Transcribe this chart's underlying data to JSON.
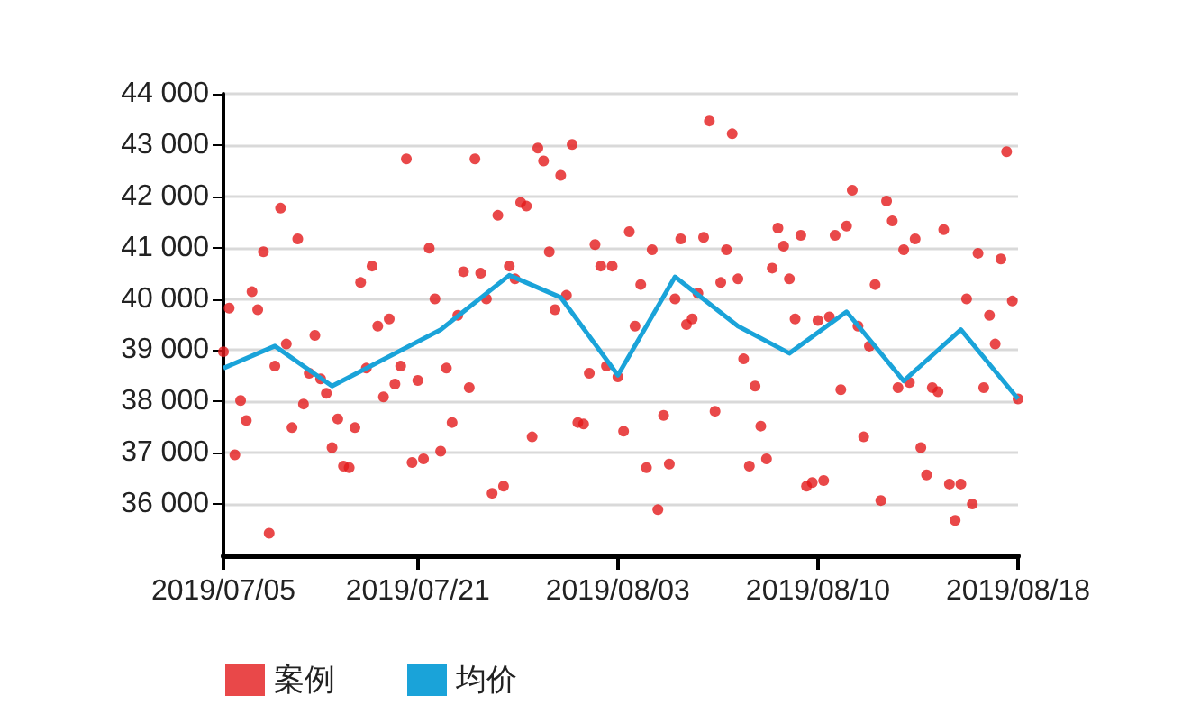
{
  "chart_data": {
    "type": "scatter",
    "categories": [
      "2019/07/05",
      null,
      null,
      null,
      null,
      null,
      null,
      null,
      null,
      null,
      null,
      null,
      null,
      null,
      null,
      null,
      null,
      null,
      null,
      null,
      null,
      null,
      null,
      null,
      null,
      null,
      null,
      null,
      null,
      null,
      null,
      null,
      null,
      null,
      "2019/07/21",
      null,
      null,
      null,
      null,
      null,
      null,
      null,
      null,
      null,
      null,
      null,
      null,
      null,
      null,
      null,
      null,
      null,
      null,
      null,
      null,
      null,
      null,
      null,
      null,
      null,
      null,
      null,
      null,
      null,
      null,
      null,
      null,
      null,
      null,
      "2019/08/03",
      null,
      null,
      null,
      null,
      null,
      null,
      null,
      null,
      null,
      null,
      null,
      null,
      null,
      null,
      null,
      null,
      null,
      null,
      null,
      null,
      null,
      null,
      null,
      null,
      null,
      null,
      null,
      null,
      null,
      null,
      null,
      null,
      null,
      null,
      "2019/08/10",
      null,
      null,
      null,
      null,
      null,
      null,
      null,
      null,
      null,
      null,
      null,
      null,
      null,
      null,
      null,
      null,
      null,
      null,
      null,
      null,
      null,
      null,
      null,
      null,
      null,
      null,
      null,
      null,
      null,
      null,
      null,
      null,
      null,
      null,
      "2019/08/18"
    ],
    "ylim": [
      35000,
      44000
    ],
    "yticks": [
      {
        "value": 36000,
        "label": "36 000"
      },
      {
        "value": 37000,
        "label": "37 000"
      },
      {
        "value": 38000,
        "label": "38 000"
      },
      {
        "value": 39000,
        "label": "39 000"
      },
      {
        "value": 40000,
        "label": "40 000"
      },
      {
        "value": 41000,
        "label": "41 000"
      },
      {
        "value": 42000,
        "label": "42 000"
      },
      {
        "value": 43000,
        "label": "43 000"
      },
      {
        "value": 44000,
        "label": "44 000"
      }
    ],
    "grid": "y",
    "legend": "bottom",
    "series": [
      {
        "name": "案例",
        "marker": "circle",
        "color": "#e31a1c",
        "values": [
          38970,
          39820,
          36960,
          38020,
          37630,
          40140,
          39790,
          40920,
          35430,
          38690,
          41770,
          39120,
          37490,
          41170,
          37950,
          38550,
          39290,
          38440,
          38160,
          37100,
          37660,
          36740,
          36710,
          37490,
          40320,
          38650,
          40640,
          39470,
          38090,
          39610,
          38340,
          38690,
          42730,
          36810,
          38410,
          36880,
          40990,
          40000,
          37030,
          38650,
          37590,
          39680,
          40530,
          38270,
          42730,
          40500,
          40000,
          36210,
          41630,
          36350,
          40640,
          40390,
          41880,
          41810,
          37310,
          42940,
          42690,
          40920,
          39790,
          42410,
          40070,
          43010,
          37590,
          37560,
          38550,
          41060,
          40640,
          38690,
          40640,
          38480,
          37420,
          41310,
          39470,
          40280,
          36710,
          40960,
          35890,
          37730,
          36780,
          40000,
          41170,
          39500,
          39610,
          40110,
          41200,
          43470,
          37810,
          40320,
          40960,
          43220,
          40390,
          38830,
          36740,
          38300,
          37520,
          36880,
          40600,
          41380,
          41030,
          40390,
          39610,
          41240,
          36350,
          36420,
          39580,
          36460,
          39650,
          41240,
          38230,
          41420,
          42120,
          39470,
          37310,
          39080,
          40280,
          36070,
          41910,
          41520,
          38270,
          40960,
          38370,
          41170,
          37100,
          36570,
          38270,
          38190,
          41350,
          36390,
          35680,
          36390,
          40000,
          36000,
          40890,
          38270,
          39680,
          39120,
          40780,
          42870,
          39960,
          38050
        ]
      },
      {
        "name": "均价",
        "type": "line",
        "marker": "none",
        "line_style": "solid",
        "color": "#1aa3d9",
        "values": [
          38650,
          null,
          null,
          null,
          null,
          null,
          null,
          null,
          null,
          39080,
          null,
          null,
          null,
          null,
          null,
          null,
          null,
          null,
          null,
          38300,
          null,
          null,
          null,
          null,
          null,
          null,
          null,
          null,
          null,
          null,
          null,
          null,
          null,
          null,
          null,
          null,
          null,
          null,
          39400,
          null,
          null,
          null,
          null,
          null,
          null,
          null,
          null,
          null,
          null,
          null,
          40460,
          null,
          null,
          null,
          null,
          null,
          null,
          null,
          null,
          40030,
          null,
          null,
          null,
          null,
          null,
          null,
          null,
          null,
          null,
          38510,
          null,
          null,
          null,
          null,
          null,
          null,
          null,
          null,
          null,
          40430,
          null,
          null,
          null,
          null,
          null,
          null,
          null,
          null,
          null,
          null,
          39470,
          null,
          null,
          null,
          null,
          null,
          null,
          null,
          null,
          38940,
          null,
          null,
          null,
          null,
          null,
          null,
          null,
          null,
          null,
          39750,
          null,
          null,
          null,
          null,
          null,
          null,
          null,
          null,
          null,
          38400,
          null,
          null,
          null,
          null,
          null,
          null,
          null,
          null,
          null,
          39400,
          null,
          null,
          null,
          null,
          null,
          null,
          null,
          null,
          null,
          38050
        ]
      }
    ]
  }
}
